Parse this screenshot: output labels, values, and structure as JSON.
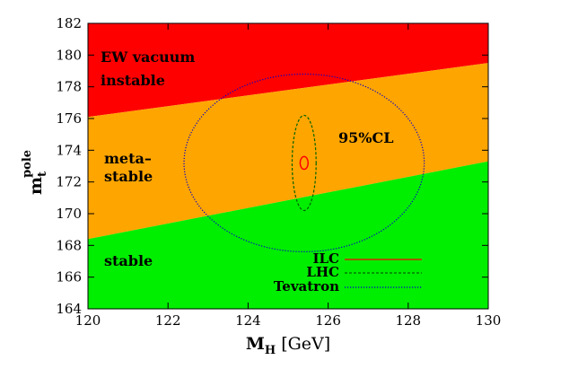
{
  "chart_data": {
    "type": "area",
    "xlim": [
      120,
      130
    ],
    "ylim": [
      164,
      182
    ],
    "x_ticks": [
      "120",
      "122",
      "124",
      "126",
      "128",
      "130"
    ],
    "y_ticks": [
      "164",
      "166",
      "168",
      "170",
      "172",
      "174",
      "176",
      "178",
      "180",
      "182"
    ],
    "xlabel": {
      "main": "M",
      "sub": "H",
      "unit": " [GeV]"
    },
    "ylabel": {
      "main": "m",
      "sub": "t",
      "sup": "pole"
    },
    "regions": [
      {
        "name": "instable",
        "color": "#ff0000",
        "lower_boundary": [
          [
            120,
            176.1
          ],
          [
            130,
            179.5
          ]
        ],
        "labels": [
          "EW vacuum",
          "instable"
        ]
      },
      {
        "name": "metastable",
        "color": "#ffa500",
        "lower_boundary": [
          [
            120,
            168.4
          ],
          [
            130,
            173.3
          ]
        ],
        "labels": [
          "meta–",
          "stable"
        ]
      },
      {
        "name": "stable",
        "color": "#00ee00",
        "labels": [
          "stable"
        ]
      }
    ],
    "ellipses": [
      {
        "name": "ILC",
        "center": [
          125.4,
          173.2
        ],
        "half_widths": [
          0.1,
          0.4
        ],
        "color": "#ff0000",
        "style": "solid"
      },
      {
        "name": "LHC",
        "center": [
          125.4,
          173.2
        ],
        "half_widths": [
          0.3,
          3.0
        ],
        "color": "#006400",
        "style": "dashed"
      },
      {
        "name": "Tevatron",
        "center": [
          125.4,
          173.2
        ],
        "half_widths": [
          3.0,
          5.6
        ],
        "color": "#0000cc",
        "style": "dotted"
      }
    ],
    "annotation": "95%CL",
    "legend": {
      "position": "bottom-right",
      "entries": [
        "ILC",
        "LHC",
        "Tevatron"
      ]
    }
  }
}
